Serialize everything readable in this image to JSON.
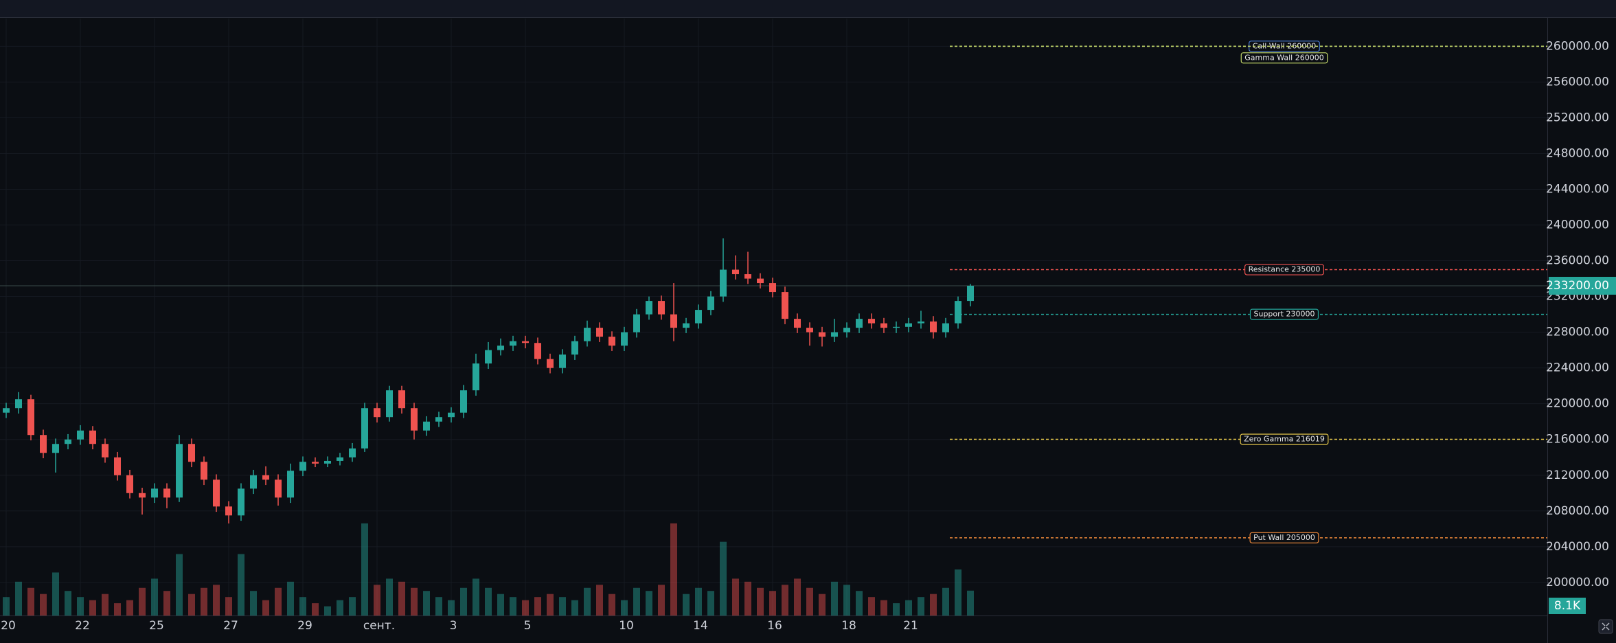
{
  "chart_data": {
    "type": "candlestick",
    "categories": [
      "20",
      null,
      null,
      null,
      null,
      null,
      "22",
      null,
      null,
      null,
      null,
      null,
      "25",
      null,
      null,
      null,
      null,
      null,
      "27",
      null,
      null,
      null,
      null,
      null,
      "29",
      null,
      null,
      null,
      null,
      null,
      "сент.",
      null,
      null,
      null,
      null,
      null,
      "3",
      null,
      null,
      null,
      null,
      null,
      "5",
      null,
      null,
      null,
      null,
      null,
      null,
      null,
      "10",
      null,
      null,
      null,
      null,
      null,
      "14",
      null,
      null,
      null,
      null,
      null,
      "16",
      null,
      null,
      null,
      null,
      null,
      "18",
      null,
      null,
      null,
      null,
      "21",
      null,
      null,
      null,
      null,
      null
    ],
    "open": [
      219000,
      219500,
      220500,
      216500,
      214500,
      215500,
      216000,
      217000,
      215500,
      214000,
      212000,
      210000,
      209500,
      210500,
      209500,
      215500,
      213500,
      211500,
      208500,
      207500,
      210500,
      212000,
      211500,
      209500,
      212500,
      213500,
      213300,
      213600,
      214000,
      215000,
      219500,
      218500,
      221500,
      219500,
      217000,
      218000,
      218500,
      219000,
      221500,
      224500,
      226000,
      226500,
      227000,
      226800,
      225000,
      224000,
      225500,
      227000,
      228500,
      227500,
      226500,
      228000,
      230000,
      231500,
      230000,
      228500,
      229000,
      230500,
      232000,
      235000,
      234500,
      234000,
      233500,
      232500,
      229500,
      228500,
      228000,
      227500,
      228000,
      228500,
      229500,
      229000,
      228500,
      228600,
      229000,
      229200,
      228000,
      229000,
      231500
    ],
    "high": [
      220100,
      221300,
      221000,
      217100,
      216100,
      216600,
      217600,
      217500,
      216100,
      214600,
      212600,
      210600,
      211100,
      211100,
      216500,
      216100,
      214100,
      212100,
      209100,
      211100,
      212600,
      213000,
      212100,
      213300,
      214100,
      214000,
      214100,
      214500,
      215600,
      220100,
      220100,
      222000,
      222000,
      220100,
      218600,
      219100,
      219600,
      222100,
      225600,
      226900,
      227300,
      227600,
      227600,
      227400,
      225600,
      226100,
      227600,
      229300,
      229100,
      228100,
      228600,
      230600,
      232000,
      232100,
      233500,
      229600,
      231100,
      232600,
      238500,
      236600,
      237000,
      234600,
      234100,
      233100,
      230100,
      229100,
      228600,
      229500,
      229100,
      230100,
      230100,
      229600,
      229200,
      229600,
      230400,
      229800,
      229600,
      232000,
      233400
    ],
    "low": [
      218400,
      218900,
      215900,
      213900,
      212300,
      214900,
      215400,
      214900,
      213400,
      211400,
      209400,
      207600,
      208900,
      208300,
      209000,
      212900,
      210900,
      207900,
      206600,
      206900,
      209900,
      210900,
      208600,
      208900,
      211900,
      212900,
      212900,
      213100,
      213500,
      214600,
      217900,
      218000,
      218900,
      216000,
      216400,
      217400,
      217900,
      218400,
      220900,
      223900,
      225400,
      225900,
      226200,
      224400,
      223400,
      223400,
      224900,
      226400,
      226900,
      225900,
      225900,
      227400,
      229400,
      229400,
      227000,
      227900,
      228400,
      229900,
      231400,
      233900,
      233400,
      232900,
      231900,
      228900,
      227900,
      226500,
      226400,
      226900,
      227400,
      227900,
      228400,
      227900,
      227900,
      228000,
      228400,
      227300,
      227400,
      228400,
      230900
    ],
    "close": [
      219500,
      220500,
      216500,
      214500,
      215500,
      216000,
      217000,
      215500,
      214000,
      212000,
      210000,
      209500,
      210500,
      209500,
      215500,
      213500,
      211500,
      208500,
      207500,
      210500,
      212000,
      211500,
      209500,
      212500,
      213500,
      213300,
      213600,
      214000,
      215000,
      219500,
      218500,
      221500,
      219500,
      217000,
      218000,
      218500,
      219000,
      221500,
      224500,
      226000,
      226500,
      227000,
      226800,
      225000,
      224000,
      225500,
      227000,
      228500,
      227500,
      226500,
      228000,
      230000,
      231500,
      230000,
      228500,
      229000,
      230500,
      232000,
      235000,
      234500,
      234000,
      233500,
      232500,
      229500,
      228500,
      228000,
      227500,
      228000,
      228500,
      229500,
      229000,
      228500,
      228600,
      229000,
      229200,
      228000,
      229000,
      231500,
      233200
    ],
    "volume": [
      6000,
      11000,
      9000,
      7000,
      14000,
      8000,
      6000,
      5000,
      7000,
      4000,
      5000,
      9000,
      12000,
      8000,
      20000,
      7000,
      9000,
      10000,
      6000,
      20000,
      8000,
      5000,
      9000,
      11000,
      6000,
      4000,
      3000,
      5000,
      6000,
      30000,
      10000,
      12000,
      11000,
      9000,
      8000,
      6000,
      5000,
      9000,
      12000,
      9000,
      7000,
      6000,
      5000,
      6000,
      7000,
      6000,
      5000,
      9000,
      10000,
      7000,
      5000,
      9000,
      8000,
      10000,
      30000,
      7000,
      9000,
      8000,
      24000,
      12000,
      11000,
      9000,
      8000,
      10000,
      12000,
      9000,
      7000,
      11000,
      10000,
      8000,
      6000,
      5000,
      4000,
      5000,
      6000,
      7000,
      9000,
      15000,
      8100
    ],
    "up_color": "#26a69a",
    "down_color": "#ef5350",
    "ylim": [
      196300,
      263100
    ],
    "yticks": [
      {
        "value": 200000,
        "label": "200000.00"
      },
      {
        "value": 204000,
        "label": "204000.00"
      },
      {
        "value": 208000,
        "label": "208000.00"
      },
      {
        "value": 212000,
        "label": "212000.00"
      },
      {
        "value": 216000,
        "label": "216000.00"
      },
      {
        "value": 220000,
        "label": "220000.00"
      },
      {
        "value": 224000,
        "label": "224000.00"
      },
      {
        "value": 228000,
        "label": "228000.00"
      },
      {
        "value": 232000,
        "label": "232000.00"
      },
      {
        "value": 236000,
        "label": "236000.00"
      },
      {
        "value": 240000,
        "label": "240000.00"
      },
      {
        "value": 244000,
        "label": "244000.00"
      },
      {
        "value": 248000,
        "label": "248000.00"
      },
      {
        "value": 252000,
        "label": "252000.00"
      },
      {
        "value": 256000,
        "label": "256000.00"
      },
      {
        "value": 260000,
        "label": "260000.00"
      }
    ],
    "volume_ylim": [
      0,
      36000
    ],
    "grid": true,
    "current_price": {
      "value": 233200,
      "label": "233200.00"
    },
    "current_volume": {
      "value": 8100,
      "label": "8.1K"
    },
    "levels": [
      {
        "label": "Call Wall 260000",
        "value": 260000,
        "color": "#c2d66a",
        "label_color": "#4a7bd1"
      },
      {
        "label": "Gamma Wall 260000",
        "value": 260000,
        "color": "#c2d66a",
        "label_color": "#c2d66a"
      },
      {
        "label": "Resistance 235000",
        "value": 235000,
        "color": "#ef5350",
        "label_color": "#ef5350"
      },
      {
        "label": "Support 230000",
        "value": 230000,
        "color": "#26a69a",
        "label_color": "#26a69a"
      },
      {
        "label": "Zero Gamma 216019",
        "value": 216019,
        "color": "#e6c84b",
        "label_color": "#e6c84b"
      },
      {
        "label": "Put Wall 205000",
        "value": 205000,
        "color": "#f08a3c",
        "label_color": "#f08a3c"
      }
    ]
  }
}
